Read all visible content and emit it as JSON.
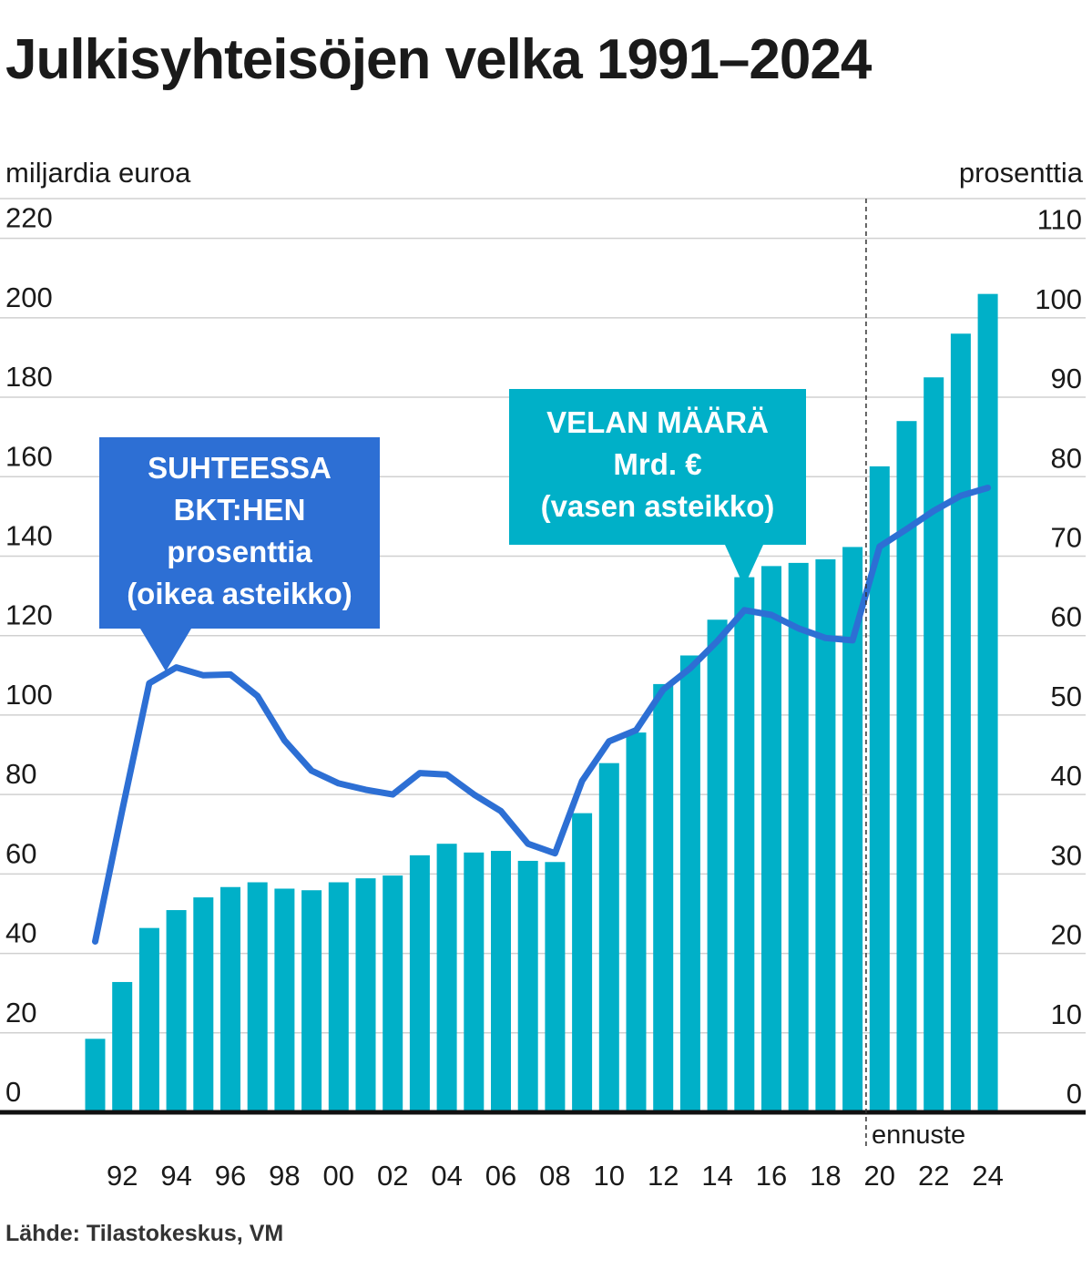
{
  "title": "Julkisyhteisöjen velka 1991–2024",
  "source": "Lähde: Tilastokeskus, VM",
  "colors": {
    "bars": "#00b0c8",
    "line": "#2d6fd4",
    "grid": "#d0d0d0",
    "text": "#1a1a1a"
  },
  "chart_data": {
    "type": "bar+line",
    "title": "Julkisyhteisöjen velka 1991–2024",
    "left_axis_label": "miljardia euroa",
    "right_axis_label": "prosenttia",
    "left_ylim": [
      0,
      230
    ],
    "right_ylim": [
      0,
      115
    ],
    "left_ticks": [
      0,
      20,
      40,
      60,
      80,
      100,
      120,
      140,
      160,
      180,
      200,
      220
    ],
    "right_ticks": [
      0,
      10,
      20,
      30,
      40,
      50,
      60,
      70,
      80,
      90,
      100,
      110
    ],
    "years": [
      1991,
      1992,
      1993,
      1994,
      1995,
      1996,
      1997,
      1998,
      1999,
      2000,
      2001,
      2002,
      2003,
      2004,
      2005,
      2006,
      2007,
      2008,
      2009,
      2010,
      2011,
      2012,
      2013,
      2014,
      2015,
      2016,
      2017,
      2018,
      2019,
      2020,
      2021,
      2022,
      2023,
      2024
    ],
    "x_tick_labels": [
      {
        "year": 1992,
        "label": "92"
      },
      {
        "year": 1994,
        "label": "94"
      },
      {
        "year": 1996,
        "label": "96"
      },
      {
        "year": 1998,
        "label": "98"
      },
      {
        "year": 2000,
        "label": "00"
      },
      {
        "year": 2002,
        "label": "02"
      },
      {
        "year": 2004,
        "label": "04"
      },
      {
        "year": 2006,
        "label": "06"
      },
      {
        "year": 2008,
        "label": "08"
      },
      {
        "year": 2010,
        "label": "10"
      },
      {
        "year": 2012,
        "label": "12"
      },
      {
        "year": 2014,
        "label": "14"
      },
      {
        "year": 2016,
        "label": "16"
      },
      {
        "year": 2018,
        "label": "18"
      },
      {
        "year": 2020,
        "label": "20"
      },
      {
        "year": 2022,
        "label": "22"
      },
      {
        "year": 2024,
        "label": "24"
      }
    ],
    "series": [
      {
        "name": "VELAN MÄÄRÄ Mrd. € (vasen asteikko)",
        "type": "bar",
        "axis": "left",
        "values": [
          18.5,
          32.8,
          46.4,
          50.9,
          54.1,
          56.7,
          57.9,
          56.3,
          55.9,
          57.9,
          58.9,
          59.6,
          64.7,
          67.6,
          65.4,
          65.8,
          63.3,
          63.0,
          75.3,
          87.9,
          95.6,
          107.8,
          115.0,
          124.0,
          134.7,
          137.5,
          138.3,
          139.2,
          142.3,
          162.6,
          174.0,
          185.0,
          196.0,
          206.0
        ]
      },
      {
        "name": "SUHTEESSA BKT:HEN prosenttia (oikea asteikko)",
        "type": "line",
        "axis": "right",
        "values": [
          21.5,
          38.0,
          54.0,
          56.0,
          55.0,
          55.1,
          52.4,
          46.8,
          43.0,
          41.4,
          40.6,
          40.0,
          42.7,
          42.5,
          40.0,
          37.9,
          33.8,
          32.6,
          41.7,
          46.7,
          48.1,
          53.2,
          55.9,
          59.3,
          63.2,
          62.6,
          60.9,
          59.7,
          59.4,
          71.2,
          73.4,
          75.7,
          77.6,
          78.6
        ]
      }
    ],
    "forecast": {
      "start_year": 2020,
      "label": "ennuste"
    },
    "annotations": [
      {
        "id": "ratio",
        "lines": [
          "SUHTEESSA",
          "BKT:HEN",
          "prosenttia",
          "(oikea asteikko)"
        ]
      },
      {
        "id": "amount",
        "lines": [
          "VELAN MÄÄRÄ",
          "Mrd. €",
          "(vasen asteikko)"
        ]
      }
    ]
  }
}
